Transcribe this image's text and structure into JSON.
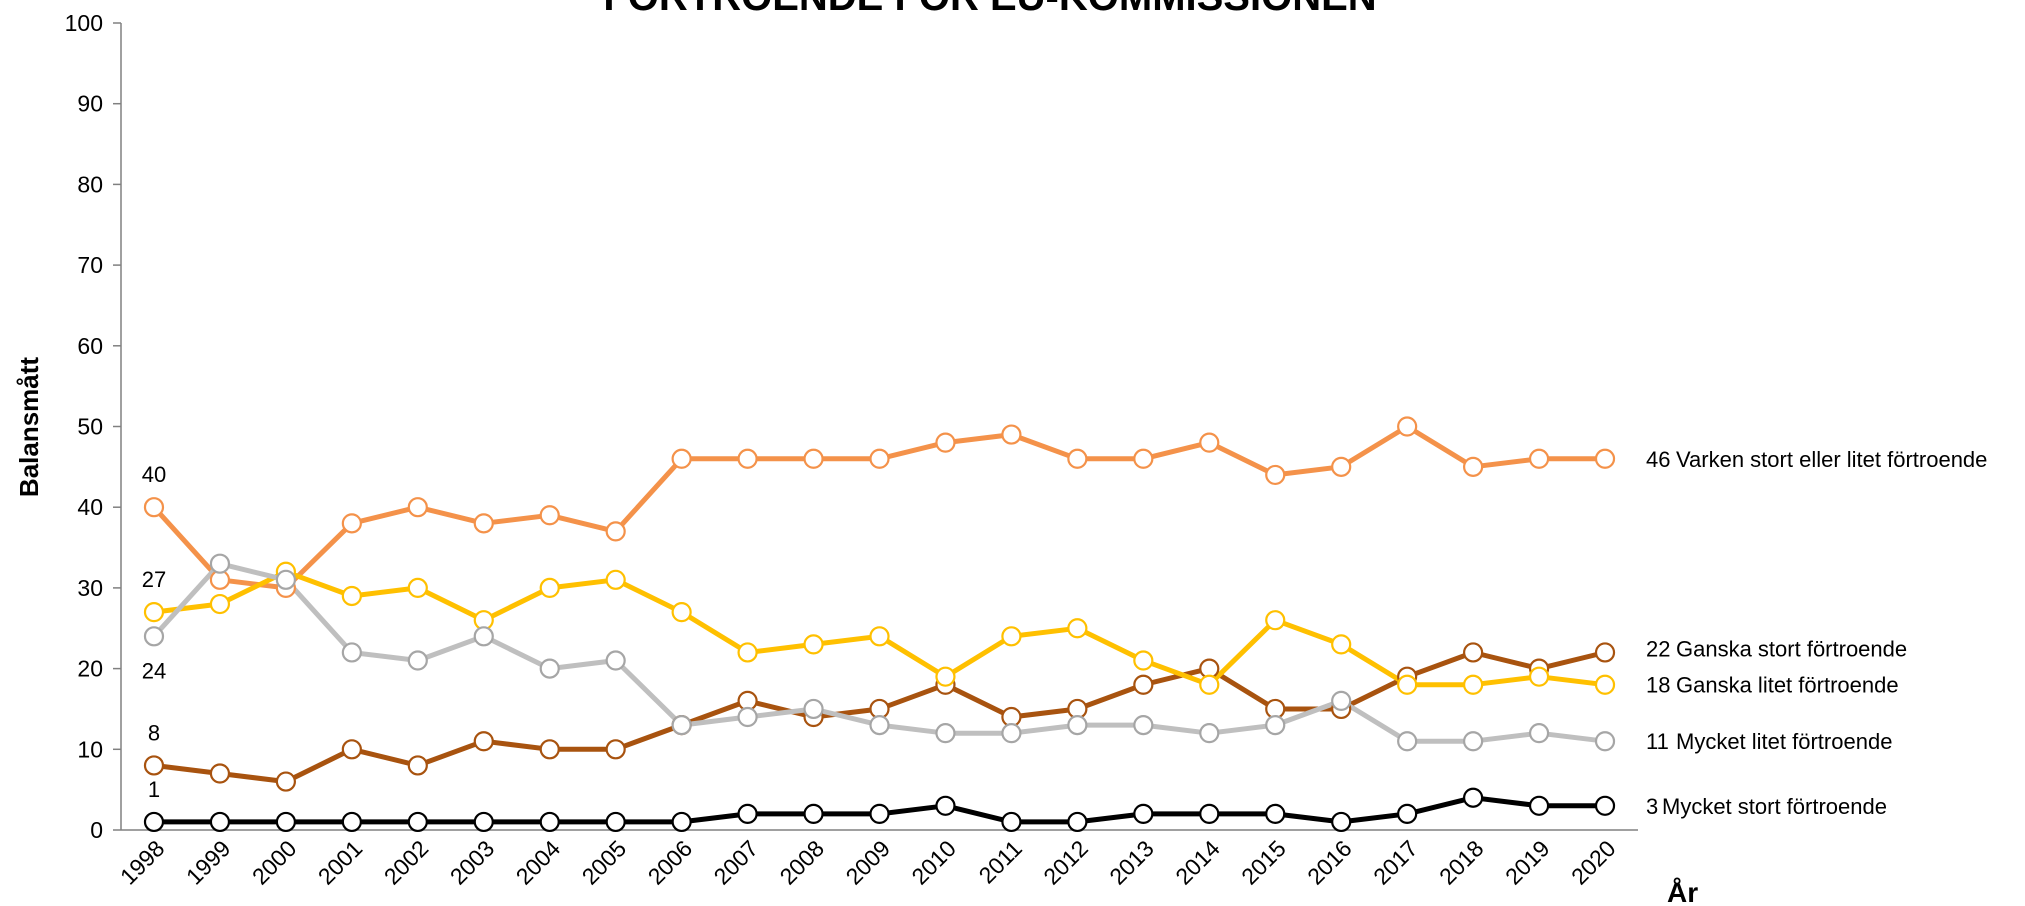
{
  "chart_data": {
    "type": "line",
    "title": "FÖRTROENDE FÖR EU-KOMMISSIONEN",
    "y_label": "Balansmått",
    "x_label": "År",
    "x": [
      1998,
      1999,
      2000,
      2001,
      2002,
      2003,
      2004,
      2005,
      2006,
      2007,
      2008,
      2009,
      2010,
      2011,
      2012,
      2013,
      2014,
      2015,
      2016,
      2017,
      2018,
      2019,
      2020
    ],
    "xlim": [
      1997.5,
      2020.5
    ],
    "ylim": [
      0,
      100
    ],
    "yticks": [
      0,
      10,
      20,
      30,
      40,
      50,
      60,
      70,
      80,
      90,
      100
    ],
    "grid": false,
    "series": [
      {
        "name": "Varken stort eller litet förtroende",
        "color": "#f4924a",
        "values": [
          40,
          31,
          30,
          38,
          40,
          38,
          39,
          37,
          46,
          46,
          46,
          46,
          48,
          49,
          46,
          46,
          48,
          44,
          45,
          50,
          45,
          46,
          46
        ]
      },
      {
        "name": "Ganska stort förtroende",
        "color": "#a8530f",
        "values": [
          8,
          7,
          6,
          10,
          8,
          11,
          10,
          10,
          13,
          16,
          14,
          15,
          18,
          14,
          15,
          18,
          20,
          15,
          15,
          19,
          22,
          20,
          22
        ]
      },
      {
        "name": "Ganska litet förtroende",
        "color": "#ffc000",
        "values": [
          27,
          28,
          32,
          29,
          30,
          26,
          30,
          31,
          27,
          22,
          23,
          24,
          19,
          24,
          25,
          21,
          18,
          26,
          23,
          18,
          18,
          19,
          18
        ]
      },
      {
        "name": "Mycket litet förtroende",
        "color": "#bfbfbf",
        "values": [
          24,
          33,
          31,
          22,
          21,
          24,
          20,
          21,
          13,
          14,
          15,
          13,
          12,
          12,
          13,
          13,
          12,
          13,
          16,
          11,
          11,
          12,
          11
        ]
      },
      {
        "name": "Mycket stort förtroende",
        "color": "#000000",
        "values": [
          1,
          1,
          1,
          1,
          1,
          1,
          1,
          1,
          1,
          2,
          2,
          2,
          3,
          1,
          1,
          2,
          2,
          2,
          1,
          2,
          4,
          3,
          3
        ]
      }
    ]
  }
}
